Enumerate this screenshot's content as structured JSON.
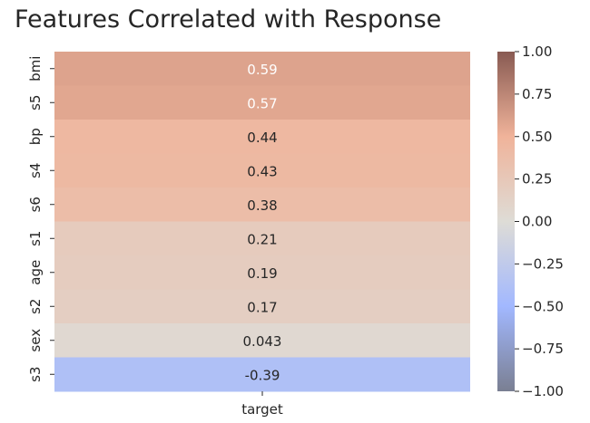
{
  "chart_data": {
    "type": "heatmap",
    "title": "Features Correlated with Response",
    "xlabel": "",
    "ylabel": "",
    "columns": [
      "target"
    ],
    "rows": [
      "bmi",
      "s5",
      "bp",
      "s4",
      "s6",
      "s1",
      "age",
      "s2",
      "sex",
      "s3"
    ],
    "values": [
      0.59,
      0.57,
      0.44,
      0.43,
      0.38,
      0.21,
      0.19,
      0.17,
      0.043,
      -0.39
    ],
    "value_labels": [
      "0.59",
      "0.57",
      "0.44",
      "0.43",
      "0.38",
      "0.21",
      "0.19",
      "0.17",
      "0.043",
      "-0.39"
    ],
    "colorbar": {
      "range": [
        -1.0,
        1.0
      ],
      "ticks": [
        1.0,
        0.75,
        0.5,
        0.25,
        0.0,
        -0.25,
        -0.5,
        -0.75,
        -1.0
      ],
      "tick_labels": [
        "1.00",
        "0.75",
        "0.50",
        "0.25",
        "0.00",
        "−0.25",
        "−0.50",
        "−0.75",
        "−1.00"
      ],
      "colormap": "coolwarm (light, blue to red)",
      "colors": {
        "low": "#7a7f92",
        "neg_mid": "#a2b8ff",
        "zero": "#dedcd6",
        "pos_mid": "#f0b39a",
        "high": "#885a52"
      }
    },
    "grid": false,
    "legend": "colorbar-right"
  }
}
